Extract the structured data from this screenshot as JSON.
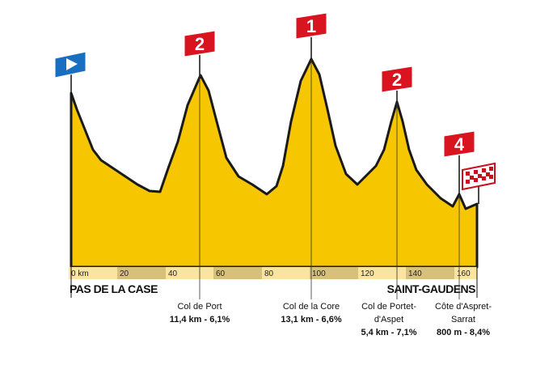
{
  "profile": {
    "km_axis": [
      "0 km",
      "20",
      "40",
      "60",
      "80",
      "100",
      "120",
      "140",
      "160"
    ],
    "places": {
      "start": "PAS DE LA CASE",
      "finish": "SAINT-GAUDENS"
    },
    "climbs": [
      {
        "category": "2",
        "name": [
          "Col de Port"
        ],
        "stats": "11,4 km - 6,1%"
      },
      {
        "category": "1",
        "name": [
          "Col de la Core"
        ],
        "stats": "13,1 km - 6,6%"
      },
      {
        "category": "2",
        "name": [
          "Col de Portet-",
          "d'Aspet"
        ],
        "stats": "5,4 km - 7,1%"
      },
      {
        "category": "4",
        "name": [
          "Côte d'Aspret-",
          "Sarrat"
        ],
        "stats": "800 m - 8,4%"
      }
    ]
  }
}
